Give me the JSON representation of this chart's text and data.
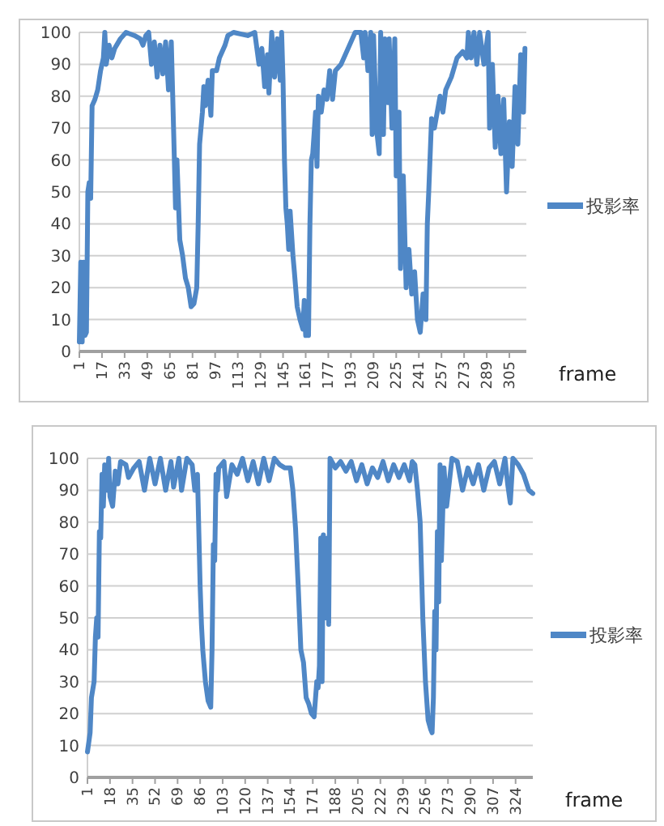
{
  "chart_data": [
    {
      "type": "line",
      "xlabel": "frame",
      "grid": "y",
      "legend": "right",
      "xlim": [
        1,
        317
      ],
      "ylim": [
        0,
        100
      ],
      "xticks": [
        1,
        17,
        33,
        49,
        65,
        81,
        97,
        113,
        129,
        145,
        161,
        177,
        193,
        209,
        225,
        241,
        257,
        273,
        289,
        305
      ],
      "yticks": [
        0,
        10,
        20,
        30,
        40,
        50,
        60,
        70,
        80,
        90,
        100
      ],
      "x": [
        1,
        2,
        3,
        4,
        5,
        6,
        7,
        8,
        9,
        10,
        12,
        14,
        16,
        18,
        19,
        20,
        22,
        24,
        26,
        30,
        34,
        40,
        44,
        46,
        48,
        50,
        52,
        54,
        56,
        58,
        60,
        62,
        64,
        66,
        67,
        68,
        69,
        70,
        72,
        74,
        76,
        78,
        80,
        82,
        84,
        85,
        86,
        88,
        89,
        90,
        92,
        94,
        95,
        98,
        100,
        104,
        106,
        110,
        120,
        125,
        128,
        130,
        132,
        134,
        135,
        137,
        139,
        141,
        143,
        144,
        145,
        146,
        147,
        148,
        149,
        150,
        152,
        153,
        155,
        157,
        159,
        160,
        161,
        162,
        163,
        164,
        165,
        166,
        168,
        169,
        170,
        172,
        174,
        176,
        178,
        180,
        182,
        186,
        190,
        194,
        196,
        200,
        202,
        203,
        205,
        207,
        208,
        209,
        211,
        213,
        214,
        216,
        217,
        219,
        220,
        222,
        224,
        225,
        227,
        228,
        230,
        232,
        234,
        236,
        238,
        240,
        242,
        244,
        246,
        247,
        248,
        250,
        252,
        254,
        256,
        258,
        260,
        264,
        268,
        272,
        275,
        276,
        278,
        280,
        282,
        284,
        287,
        290,
        291,
        293,
        295,
        297,
        299,
        301,
        303,
        305,
        307,
        309,
        311,
        313,
        315,
        316
      ],
      "series": [
        {
          "name": "投影率",
          "color": "#4f87c6",
          "values": [
            3,
            28,
            3,
            28,
            5,
            6,
            50,
            53,
            48,
            77,
            79,
            82,
            88,
            92,
            100,
            90,
            96,
            92,
            95,
            98,
            100,
            99,
            98,
            96,
            99,
            100,
            90,
            97,
            86,
            96,
            87,
            97,
            82,
            97,
            80,
            63,
            45,
            60,
            35,
            30,
            23,
            20,
            14,
            15,
            20,
            40,
            65,
            75,
            83,
            77,
            85,
            74,
            88,
            88,
            92,
            96,
            99,
            100,
            99,
            100,
            90,
            95,
            83,
            93,
            81,
            100,
            86,
            98,
            85,
            100,
            85,
            60,
            45,
            40,
            32,
            44,
            30,
            25,
            14,
            10,
            7,
            16,
            5,
            15,
            5,
            40,
            60,
            62,
            75,
            58,
            80,
            75,
            82,
            79,
            88,
            79,
            88,
            90,
            94,
            98,
            100,
            100,
            92,
            100,
            88,
            100,
            68,
            99,
            70,
            62,
            100,
            68,
            98,
            78,
            98,
            70,
            98,
            55,
            75,
            26,
            55,
            20,
            32,
            18,
            25,
            10,
            6,
            18,
            10,
            40,
            50,
            73,
            70,
            75,
            80,
            75,
            82,
            86,
            92,
            94,
            92,
            100,
            92,
            100,
            90,
            100,
            90,
            100,
            70,
            90,
            64,
            80,
            62,
            79,
            50,
            72,
            58,
            83,
            65,
            93,
            75,
            95
          ]
        }
      ]
    },
    {
      "type": "line",
      "xlabel": "frame",
      "grid": "y",
      "legend": "right",
      "xlim": [
        1,
        337
      ],
      "ylim": [
        0,
        100
      ],
      "xticks": [
        1,
        18,
        35,
        52,
        69,
        86,
        103,
        120,
        137,
        154,
        171,
        188,
        205,
        222,
        239,
        256,
        273,
        290,
        307,
        324
      ],
      "yticks": [
        0,
        10,
        20,
        30,
        40,
        50,
        60,
        70,
        80,
        90,
        100
      ],
      "x": [
        1,
        3,
        4,
        6,
        7,
        8,
        9,
        10,
        11,
        12,
        13,
        14,
        16,
        17,
        18,
        20,
        22,
        24,
        26,
        30,
        32,
        36,
        40,
        44,
        48,
        52,
        56,
        60,
        64,
        66,
        70,
        72,
        76,
        80,
        82,
        84,
        86,
        87,
        88,
        89,
        90,
        92,
        94,
        95,
        96,
        97,
        98,
        99,
        100,
        104,
        106,
        110,
        114,
        118,
        122,
        126,
        130,
        134,
        138,
        142,
        146,
        150,
        154,
        156,
        158,
        160,
        162,
        164,
        166,
        168,
        170,
        172,
        174,
        175,
        176,
        177,
        178,
        179,
        180,
        181,
        182,
        183,
        184,
        188,
        192,
        196,
        200,
        204,
        208,
        212,
        216,
        220,
        224,
        228,
        232,
        236,
        240,
        244,
        246,
        248,
        250,
        252,
        254,
        256,
        258,
        260,
        261,
        262,
        263,
        264,
        265,
        266,
        267,
        268,
        270,
        272,
        276,
        280,
        284,
        288,
        292,
        296,
        300,
        304,
        308,
        312,
        316,
        318,
        320,
        322,
        326,
        330,
        334,
        337
      ],
      "series": [
        {
          "name": "投影率",
          "color": "#4f87c6",
          "values": [
            8,
            14,
            25,
            30,
            44,
            50,
            44,
            77,
            75,
            95,
            85,
            98,
            90,
            100,
            88,
            85,
            96,
            92,
            99,
            98,
            94,
            97,
            99,
            90,
            100,
            92,
            100,
            90,
            99,
            91,
            100,
            90,
            100,
            98,
            90,
            95,
            60,
            48,
            40,
            35,
            30,
            24,
            22,
            40,
            73,
            68,
            95,
            90,
            97,
            99,
            88,
            98,
            95,
            100,
            93,
            99,
            92,
            100,
            93,
            100,
            98,
            97,
            97,
            90,
            78,
            60,
            40,
            36,
            25,
            23,
            20,
            19,
            30,
            28,
            35,
            75,
            30,
            76,
            60,
            50,
            75,
            48,
            100,
            97,
            99,
            96,
            99,
            93,
            98,
            92,
            97,
            94,
            99,
            93,
            98,
            94,
            98,
            93,
            99,
            98,
            90,
            80,
            50,
            30,
            18,
            15,
            14,
            25,
            52,
            40,
            77,
            55,
            98,
            68,
            97,
            85,
            100,
            99,
            90,
            97,
            92,
            98,
            90,
            97,
            99,
            92,
            100,
            92,
            86,
            100,
            98,
            95,
            90,
            89
          ]
        }
      ]
    }
  ]
}
